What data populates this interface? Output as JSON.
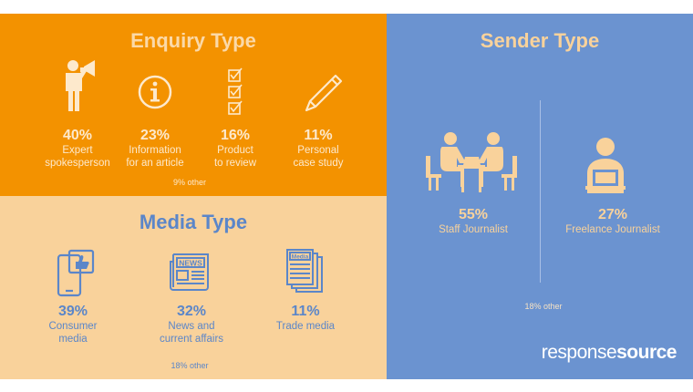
{
  "enquiry": {
    "title": "Enquiry Type",
    "items": [
      {
        "pct": "40%",
        "label1": "Expert",
        "label2": "spokesperson",
        "icon": "megaphone-person-icon"
      },
      {
        "pct": "23%",
        "label1": "Information",
        "label2": "for an article",
        "icon": "info-icon"
      },
      {
        "pct": "16%",
        "label1": "Product",
        "label2": "to review",
        "icon": "checklist-icon"
      },
      {
        "pct": "11%",
        "label1": "Personal",
        "label2": "case study",
        "icon": "pen-icon"
      }
    ],
    "other": "9% other"
  },
  "media": {
    "title": "Media Type",
    "items": [
      {
        "pct": "39%",
        "label1": "Consumer",
        "label2": "media",
        "icon": "phone-like-icon"
      },
      {
        "pct": "32%",
        "label1": "News and",
        "label2": "current affairs",
        "icon": "newspaper-icon"
      },
      {
        "pct": "11%",
        "label1": "Trade media",
        "label2": "",
        "icon": "magazine-icon"
      }
    ],
    "news_text": "NEWS",
    "mag_text": "Media",
    "other": "18% other"
  },
  "sender": {
    "title": "Sender Type",
    "items": [
      {
        "pct": "55%",
        "label": "Staff Journalist",
        "icon": "meeting-icon"
      },
      {
        "pct": "27%",
        "label": "Freelance Journalist",
        "icon": "laptop-person-icon"
      }
    ],
    "other": "18% other"
  },
  "brand": {
    "part1": "response",
    "part2": "source"
  },
  "colors": {
    "orange": "#f39200",
    "light_orange": "#f9d29b",
    "blue": "#6b93d0",
    "text_blue": "#5b86c9"
  }
}
